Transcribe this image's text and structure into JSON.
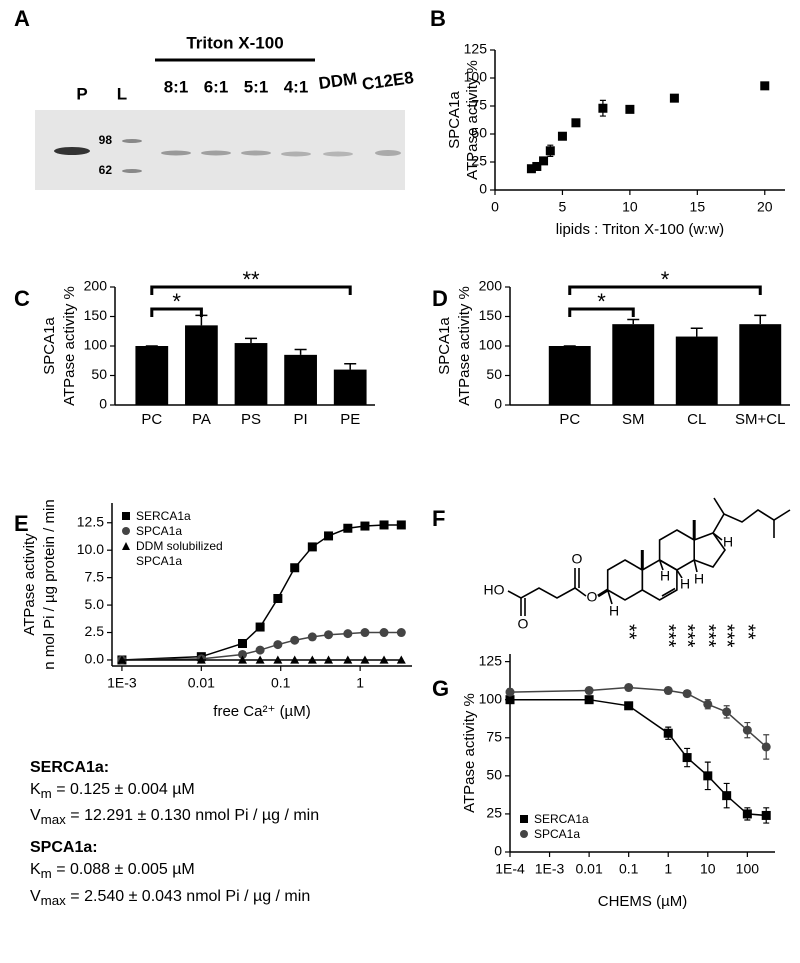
{
  "gel": {
    "label": "A",
    "lanes_top": [
      "P",
      "L"
    ],
    "group": "Triton X-100",
    "ratios": [
      "8:1",
      "6:1",
      "5:1",
      "4:1"
    ],
    "others": [
      "DDM",
      "C12E8"
    ],
    "markers": [
      98,
      62
    ]
  },
  "structure": {
    "label": "F",
    "atoms": [
      "HO",
      "O",
      "O",
      "O",
      "H",
      "H",
      "H",
      "H",
      "H"
    ]
  },
  "kinetics": {
    "entries": [
      {
        "name": "SERCA1a:",
        "km": {
          "symbol": "K",
          "sub": "m",
          "text": " = 0.125 ± 0.004 µM"
        },
        "vmax": {
          "symbol": "V",
          "sub": "max",
          "text": " = 12.291 ± 0.130 nmol Pi / µg / min"
        }
      },
      {
        "name": "SPCA1a:",
        "km": {
          "symbol": "K",
          "sub": "m",
          "text": " = 0.088 ± 0.005 µM"
        },
        "vmax": {
          "symbol": "V",
          "sub": "max",
          "text": " = 2.540 ± 0.043 nmol Pi / µg / min"
        }
      }
    ]
  },
  "chart_data": [
    {
      "label": "B",
      "type": "scatter",
      "ylabel": [
        "SPCA1a",
        "ATPase activity %"
      ],
      "xlabel": "lipids : Triton X-100 (w:w)",
      "xlim": [
        0,
        21.5
      ],
      "xticks": [
        0,
        5,
        10,
        15,
        20
      ],
      "ylim": [
        0,
        125
      ],
      "yticks": [
        0,
        25,
        50,
        75,
        100,
        125
      ],
      "series": [
        {
          "marker": "square",
          "color": "#000000",
          "x": [
            2.7,
            3.1,
            3.6,
            4.1,
            5,
            6,
            8,
            10,
            13.3,
            20
          ],
          "values": [
            19,
            21,
            26,
            35,
            48,
            60,
            73,
            72,
            82,
            93
          ],
          "errors": [
            2,
            2,
            3,
            5,
            3,
            2,
            7,
            2,
            2,
            2
          ]
        }
      ]
    },
    {
      "label": "C",
      "type": "bar",
      "ylabel": [
        "SPCA1a",
        "ATPase activity %"
      ],
      "categories": [
        "PC",
        "PA",
        "PS",
        "PI",
        "PE"
      ],
      "values": [
        100,
        135,
        105,
        85,
        60
      ],
      "errors": [
        0,
        17,
        8,
        9,
        10
      ],
      "color": "#000000",
      "ylim": [
        0,
        200
      ],
      "yticks": [
        0,
        50,
        100,
        150,
        200
      ],
      "annotations": [
        {
          "text": "*",
          "from": 0,
          "to": 1
        },
        {
          "text": "**",
          "from": 0,
          "to": 4
        }
      ]
    },
    {
      "label": "D",
      "type": "bar",
      "ylabel": [
        "SPCA1a",
        "ATPase activity %"
      ],
      "categories": [
        "PC",
        "SM",
        "CL",
        "SM+CL"
      ],
      "values": [
        100,
        137,
        116,
        137
      ],
      "errors": [
        0,
        8,
        14,
        15
      ],
      "color": "#000000",
      "ylim": [
        0,
        200
      ],
      "yticks": [
        0,
        50,
        100,
        150,
        200
      ],
      "annotations": [
        {
          "text": "*",
          "from": 0,
          "to": 1
        },
        {
          "text": "*",
          "from": 0,
          "to": 3
        }
      ]
    },
    {
      "label": "E",
      "type": "line",
      "xscale": "log",
      "ylabel": [
        "ATPase activity",
        "n mol Pi / µg protein / min"
      ],
      "xlabel": "free Ca²⁺ (µM)",
      "xlim": [
        0.00075,
        4.5
      ],
      "xticks": [
        {
          "value": 0.001,
          "label": "1E-3"
        },
        0.01,
        0.1,
        1
      ],
      "ylim": [
        -0.55,
        14.3
      ],
      "yticks": [
        {
          "value": 0,
          "label": "0.0"
        },
        2.5,
        {
          "value": 5,
          "label": "5.0"
        },
        7.5,
        {
          "value": 10,
          "label": "10.0"
        },
        12.5
      ],
      "legend": "upper left",
      "x": [
        0.001,
        0.01,
        0.033,
        0.055,
        0.092,
        0.15,
        0.25,
        0.4,
        0.7,
        1.15,
        2,
        3.3
      ],
      "series": [
        {
          "name": "SERCA1a",
          "marker": "square",
          "color": "#000000",
          "values": [
            0,
            0.3,
            1.5,
            3,
            5.6,
            8.4,
            10.3,
            11.3,
            12,
            12.2,
            12.3,
            12.3
          ]
        },
        {
          "name": "SPCA1a",
          "marker": "circle",
          "color": "#444444",
          "values": [
            0,
            0.1,
            0.5,
            0.9,
            1.4,
            1.8,
            2.1,
            2.3,
            2.4,
            2.5,
            2.5,
            2.5
          ]
        },
        {
          "name": "DDM solubilized SPCA1a",
          "marker": "triangle",
          "color": "#000000",
          "values": [
            0,
            0,
            0,
            0,
            0,
            0,
            0,
            0,
            0,
            0,
            0,
            0
          ]
        }
      ]
    },
    {
      "label": "G",
      "type": "line",
      "xscale": "log",
      "ylabel": [
        "ATPase activity %"
      ],
      "xlabel": "CHEMS (µM)",
      "xlim": [
        0.0001,
        500
      ],
      "xticks": [
        {
          "value": 0.0001,
          "label": "1E-4"
        },
        {
          "value": 0.001,
          "label": "1E-3"
        },
        0.01,
        0.1,
        1,
        10,
        100
      ],
      "ylim": [
        0,
        130
      ],
      "yticks": [
        0,
        25,
        50,
        75,
        100,
        125
      ],
      "legend": "lower left",
      "x": [
        0.0001,
        0.01,
        0.1,
        1,
        3,
        10,
        30,
        100,
        300
      ],
      "series": [
        {
          "name": "SERCA1a",
          "marker": "square",
          "color": "#000000",
          "values": [
            100,
            100,
            96,
            78,
            62,
            50,
            37,
            25,
            24
          ],
          "errors": [
            1,
            2,
            2,
            4,
            6,
            9,
            8,
            4,
            5
          ]
        },
        {
          "name": "SPCA1a",
          "marker": "circle",
          "color": "#444444",
          "values": [
            105,
            106,
            108,
            106,
            104,
            97,
            92,
            80,
            69
          ],
          "errors": [
            2,
            2,
            2,
            2,
            2,
            3,
            4,
            5,
            8
          ]
        }
      ],
      "annotations": [
        {
          "x": 0.1,
          "text": "**"
        },
        {
          "x": 1,
          "text": "***"
        },
        {
          "x": 3,
          "text": "***"
        },
        {
          "x": 10,
          "text": "***"
        },
        {
          "x": 30,
          "text": "***"
        },
        {
          "x": 100,
          "text": "**"
        }
      ]
    }
  ]
}
